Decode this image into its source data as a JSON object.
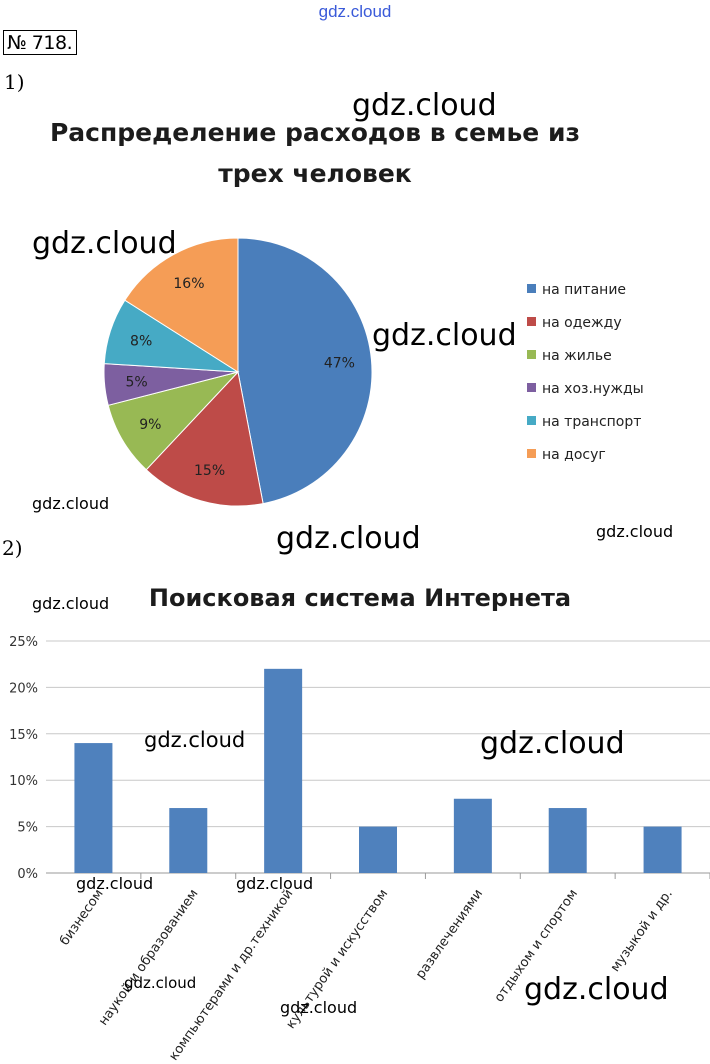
{
  "page": {
    "site_label": "gdz.cloud",
    "task_number": "№ 718.",
    "part1_label": "1)",
    "part2_label": "2)"
  },
  "watermarks": [
    {
      "text": "gdz.cloud",
      "size": "big"
    },
    {
      "text": "gdz.cloud",
      "size": "big"
    },
    {
      "text": "gdz.cloud",
      "size": "big"
    },
    {
      "text": "gdz.cloud",
      "size": "small"
    },
    {
      "text": "gdz.cloud",
      "size": "big"
    },
    {
      "text": "gdz.cloud",
      "size": "small"
    },
    {
      "text": "gdz.cloud",
      "size": "small"
    },
    {
      "text": "gdz.cloud",
      "size": "medium"
    },
    {
      "text": "gdz.cloud",
      "size": "big"
    },
    {
      "text": "gdz.cloud",
      "size": "small"
    },
    {
      "text": "gdz.cloud",
      "size": "small"
    },
    {
      "text": "gdz.cloud",
      "size": "small"
    },
    {
      "text": "gdz.cloud",
      "size": "small"
    },
    {
      "text": "gdz.cloud",
      "size": "big"
    }
  ],
  "chart_data": [
    {
      "type": "pie",
      "title_line1": "Распределение расходов в семье из",
      "title_line2": "трех человек",
      "legend_position": "right",
      "slices": [
        {
          "label": "на питание",
          "value": 47,
          "display": "47%",
          "color": "#4a7ebb"
        },
        {
          "label": "на одежду",
          "value": 15,
          "display": "15%",
          "color": "#be4b48"
        },
        {
          "label": "на жилье",
          "value": 9,
          "display": "9%",
          "color": "#98b954"
        },
        {
          "label": "на хоз.нужды",
          "value": 5,
          "display": "5%",
          "color": "#7d5fa0"
        },
        {
          "label": "на транспорт",
          "value": 8,
          "display": "8%",
          "color": "#46aac5"
        },
        {
          "label": "на досуг",
          "value": 16,
          "display": "16%",
          "color": "#f59d56"
        }
      ]
    },
    {
      "type": "bar",
      "title": "Поисковая система Интернета",
      "color": "#4f81bd",
      "grid": true,
      "ylim": [
        0,
        25
      ],
      "yticks": [
        0,
        5,
        10,
        15,
        20,
        25
      ],
      "ytick_labels": [
        "0%",
        "5%",
        "10%",
        "15%",
        "20%",
        "25%"
      ],
      "categories": [
        "бизнесом",
        "наукой и образованием",
        "компьютерами и др.техникой",
        "культурой и искусством",
        "развлечениями",
        "отдыхом и спортом",
        "музыкой и др."
      ],
      "values": [
        14,
        7,
        22,
        5,
        8,
        7,
        5
      ]
    }
  ]
}
